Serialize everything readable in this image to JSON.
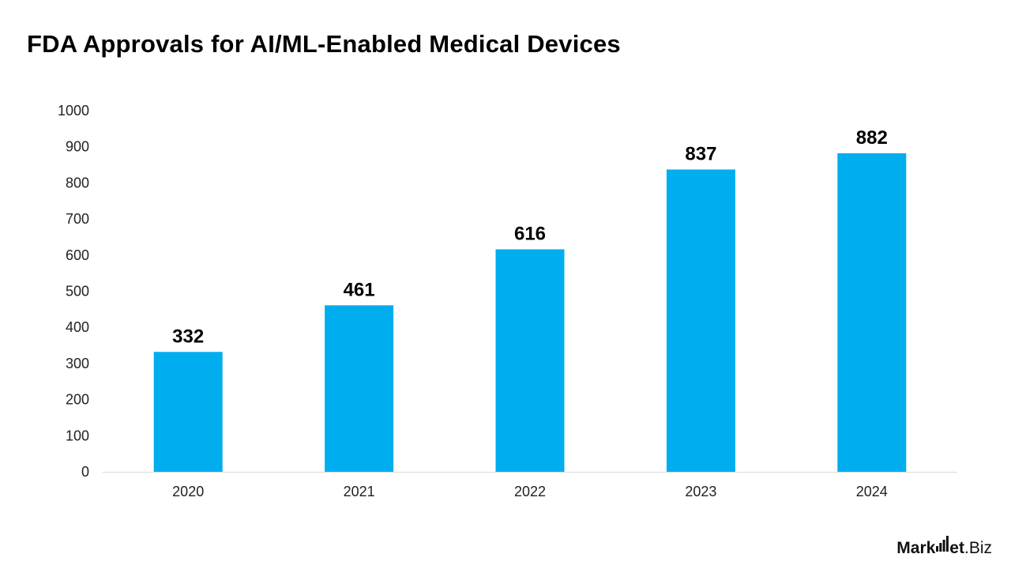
{
  "chart_data": {
    "type": "bar",
    "title": "FDA Approvals for AI/ML-Enabled Medical Devices",
    "categories": [
      "2020",
      "2021",
      "2022",
      "2023",
      "2024"
    ],
    "values": [
      332,
      461,
      616,
      837,
      882
    ],
    "data_labels": [
      "332",
      "461",
      "616",
      "837",
      "882"
    ],
    "ylim": [
      0,
      1000
    ],
    "yticks": [
      0,
      100,
      200,
      300,
      400,
      500,
      600,
      700,
      800,
      900,
      1000
    ],
    "xlabel": "",
    "ylabel": "",
    "grid": false,
    "legend": "none",
    "bar_color": "#00AEEF",
    "axis_color": "#D9D9D9"
  },
  "brand": {
    "part1": "Mark",
    "part2": "et",
    "part3": ".Biz",
    "icon": "signal-bars-icon"
  }
}
